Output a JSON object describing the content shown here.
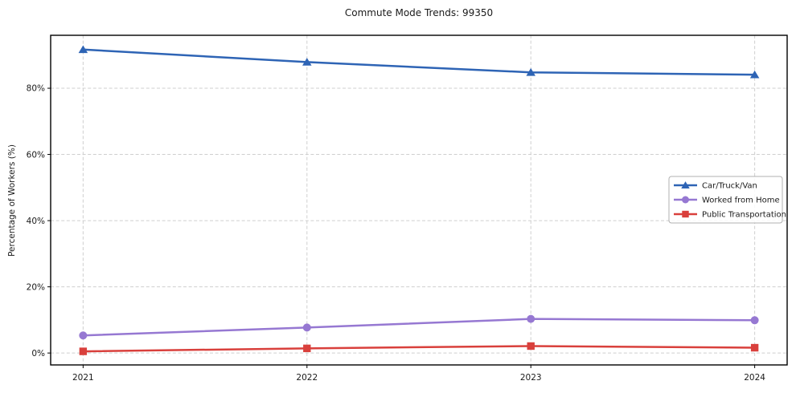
{
  "figure": {
    "title": "Commute Mode Trends: 99350"
  },
  "chart_data": {
    "type": "line",
    "title": "Commute Mode Trends: 99350",
    "xlabel": "",
    "ylabel": "Percentage of Workers (%)",
    "x": [
      2021,
      2022,
      2023,
      2024
    ],
    "x_tick_labels": [
      "2021",
      "2022",
      "2023",
      "2024"
    ],
    "y_ticks": [
      0,
      20,
      40,
      60,
      80
    ],
    "y_tick_labels": [
      "0%",
      "20%",
      "40%",
      "60%",
      "80%"
    ],
    "xlim": [
      2020.855,
      2024.145
    ],
    "ylim": [
      -3.6,
      96
    ],
    "grid": true,
    "legend_position": "center-right",
    "series": [
      {
        "name": "Car/Truck/Van",
        "marker": "triangle",
        "color": "#2e64b5",
        "values": [
          91.7,
          87.9,
          84.8,
          84.1
        ]
      },
      {
        "name": "Worked from Home",
        "marker": "circle",
        "color": "#9678d2",
        "values": [
          5.3,
          7.7,
          10.3,
          9.9
        ]
      },
      {
        "name": "Public Transportation",
        "marker": "square",
        "color": "#d9403c",
        "values": [
          0.5,
          1.4,
          2.1,
          1.6
        ]
      }
    ],
    "style": {
      "background": "#ffffff",
      "grid_color": "#cfcfcf",
      "text_color": "#1a1a1a",
      "spine_color": "#000000",
      "legend_border": "#b0b0b0"
    }
  }
}
